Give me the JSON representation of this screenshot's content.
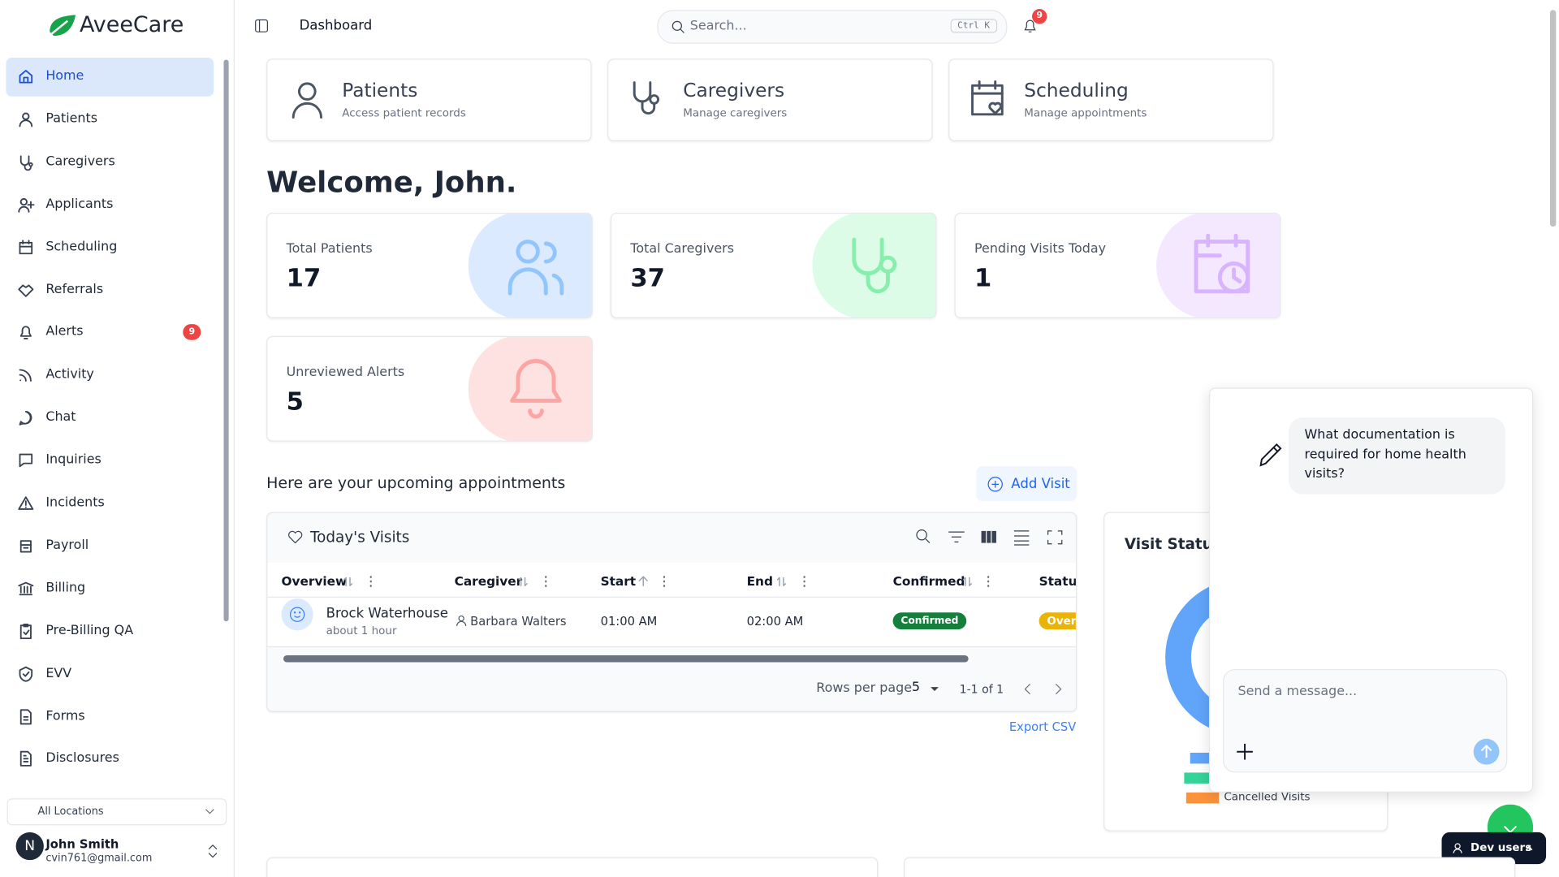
{
  "brand": "AveeCare",
  "header": {
    "page": "Dashboard",
    "search_placeholder": "Search...",
    "shortcut": "Ctrl K",
    "notification_count": 9
  },
  "nav": [
    {
      "label": "Home"
    },
    {
      "label": "Patients"
    },
    {
      "label": "Caregivers"
    },
    {
      "label": "Applicants"
    },
    {
      "label": "Scheduling"
    },
    {
      "label": "Referrals"
    },
    {
      "label": "Alerts",
      "badge": 9
    },
    {
      "label": "Activity"
    },
    {
      "label": "Chat"
    },
    {
      "label": "Inquiries"
    },
    {
      "label": "Incidents"
    },
    {
      "label": "Payroll"
    },
    {
      "label": "Billing"
    },
    {
      "label": "Pre-Billing QA"
    },
    {
      "label": "EVV"
    },
    {
      "label": "Forms"
    },
    {
      "label": "Disclosures"
    }
  ],
  "location": "All Locations",
  "user": {
    "initial": "N",
    "name": "John Smith",
    "email": "cvin761@gmail.com"
  },
  "quick_links": [
    {
      "title": "Patients",
      "subtitle": "Access patient records"
    },
    {
      "title": "Caregivers",
      "subtitle": "Manage caregivers"
    },
    {
      "title": "Scheduling",
      "subtitle": "Manage appointments"
    }
  ],
  "welcome": "Welcome, John.",
  "stats": [
    {
      "label": "Total Patients",
      "value": 17
    },
    {
      "label": "Total Caregivers",
      "value": 37
    },
    {
      "label": "Pending Visits Today",
      "value": 1
    },
    {
      "label": "Unreviewed Alerts",
      "value": 5
    }
  ],
  "appointments": {
    "heading": "Here are your upcoming appointments",
    "add_button": "Add Visit",
    "table_title": "Today's Visits",
    "columns": [
      "Overview",
      "Caregiver",
      "Start",
      "End",
      "Confirmed",
      "Status"
    ],
    "rows": [
      {
        "patient": "Brock Waterhouse",
        "ago": "about 1 hour",
        "caregiver": "Barbara Walters",
        "start": "01:00 AM",
        "end": "02:00 AM",
        "confirmed": "Confirmed",
        "status": "Over"
      }
    ],
    "rows_per_page_label": "Rows per page",
    "rows_per_page": 5,
    "range": "1-1 of 1",
    "export": "Export CSV"
  },
  "visit_status": {
    "title": "Visit Status",
    "legend": [
      "Cancelled Visits"
    ]
  },
  "chat": {
    "message": "What documentation is required for home health visits?",
    "input_placeholder": "Send a message..."
  },
  "dev_button": "Dev users"
}
